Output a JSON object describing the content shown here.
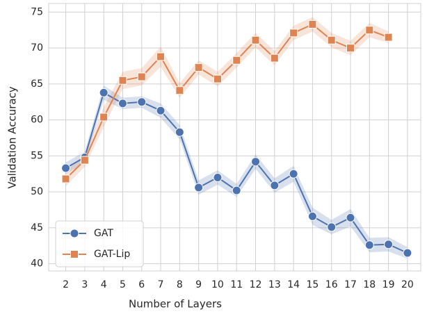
{
  "chart_data": {
    "type": "line",
    "x_label": "Number of Layers",
    "y_label": "Validation Accuracy",
    "x": [
      2,
      3,
      4,
      5,
      6,
      7,
      8,
      9,
      10,
      11,
      12,
      13,
      14,
      15,
      16,
      17,
      18,
      19,
      20
    ],
    "series": [
      {
        "name": "GAT",
        "color": "#4c72b0",
        "marker": "circle",
        "values": [
          53.3,
          54.8,
          63.8,
          62.3,
          62.5,
          61.3,
          58.3,
          50.6,
          52.0,
          50.2,
          54.2,
          50.9,
          52.5,
          46.6,
          45.1,
          46.4,
          42.6,
          42.7,
          41.5
        ],
        "error": [
          0.8,
          0.8,
          1.0,
          0.8,
          0.8,
          1.0,
          1.0,
          1.0,
          1.0,
          0.9,
          1.0,
          1.0,
          1.1,
          1.2,
          1.0,
          1.2,
          1.0,
          1.0,
          0.8
        ]
      },
      {
        "name": "GAT-Lip",
        "color": "#dd8452",
        "marker": "square",
        "values": [
          51.8,
          54.4,
          60.4,
          65.5,
          66.0,
          68.8,
          64.1,
          67.3,
          65.7,
          68.3,
          71.1,
          68.6,
          72.1,
          73.3,
          71.1,
          70.0,
          72.5,
          71.5,
          null
        ],
        "error": [
          1.0,
          0.9,
          1.4,
          1.2,
          1.2,
          1.4,
          1.0,
          1.0,
          1.0,
          1.0,
          1.0,
          1.0,
          1.0,
          1.0,
          1.0,
          1.0,
          1.0,
          0.8,
          null
        ]
      }
    ],
    "xlim": [
      1.1,
      20.7
    ],
    "ylim": [
      39,
      76.2
    ],
    "xticks": [
      2,
      3,
      4,
      5,
      6,
      7,
      8,
      9,
      10,
      11,
      12,
      13,
      14,
      15,
      16,
      17,
      18,
      19,
      20
    ],
    "yticks": [
      40,
      45,
      50,
      55,
      60,
      65,
      70,
      75
    ],
    "grid": true,
    "legend": "lower left"
  }
}
